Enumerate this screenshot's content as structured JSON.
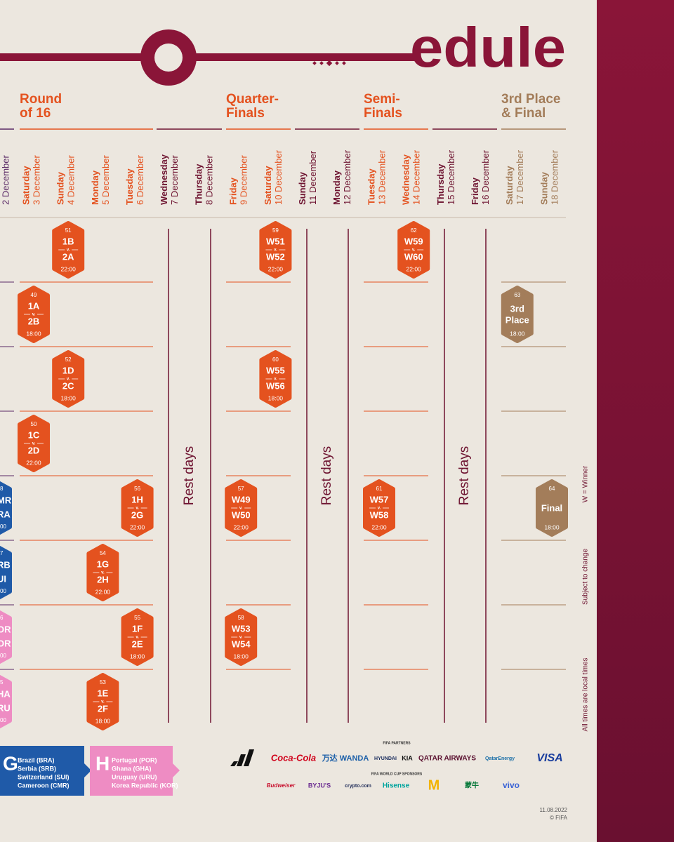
{
  "header": {
    "title": "edule"
  },
  "stages": [
    {
      "lines": [
        "Round",
        "of 16"
      ]
    },
    {
      "lines": [
        "Quarter-",
        "Finals"
      ]
    },
    {
      "lines": [
        "Semi-",
        "Finals"
      ]
    },
    {
      "lines": [
        "3rd Place",
        "& Final"
      ]
    }
  ],
  "days": [
    {
      "date": "2 December"
    },
    {
      "weekday": "Saturday",
      "date": "3 December"
    },
    {
      "weekday": "Sunday",
      "date": "4 December"
    },
    {
      "weekday": "Monday",
      "date": "5 December"
    },
    {
      "weekday": "Tuesday",
      "date": "6 December"
    },
    {
      "weekday": "Wednesday",
      "date": "7 December"
    },
    {
      "weekday": "Thursday",
      "date": "8 December"
    },
    {
      "weekday": "Friday",
      "date": "9 December"
    },
    {
      "weekday": "Saturday",
      "date": "10 December"
    },
    {
      "weekday": "Sunday",
      "date": "11 December"
    },
    {
      "weekday": "Monday",
      "date": "12 December"
    },
    {
      "weekday": "Tuesday",
      "date": "13 December"
    },
    {
      "weekday": "Wednesday",
      "date": "14 December"
    },
    {
      "weekday": "Thursday",
      "date": "15 December"
    },
    {
      "weekday": "Friday",
      "date": "16 December"
    },
    {
      "weekday": "Saturday",
      "date": "17 December"
    },
    {
      "weekday": "Sunday",
      "date": "18 December"
    }
  ],
  "matches": [
    {
      "number": 49,
      "home": "1A",
      "vs": "v.",
      "away": "2B",
      "time": "18:00"
    },
    {
      "number": 50,
      "home": "1C",
      "vs": "v.",
      "away": "2D",
      "time": "22:00"
    },
    {
      "number": 51,
      "home": "1B",
      "vs": "v.",
      "away": "2A",
      "time": "22:00"
    },
    {
      "number": 52,
      "home": "1D",
      "vs": "v.",
      "away": "2C",
      "time": "18:00"
    },
    {
      "number": 53,
      "home": "1E",
      "vs": "v.",
      "away": "2F",
      "time": "18:00"
    },
    {
      "number": 54,
      "home": "1G",
      "vs": "v.",
      "away": "2H",
      "time": "22:00"
    },
    {
      "number": 55,
      "home": "1F",
      "vs": "v.",
      "away": "2E",
      "time": "18:00"
    },
    {
      "number": 56,
      "home": "1H",
      "vs": "v.",
      "away": "2G",
      "time": "22:00"
    },
    {
      "number": 57,
      "home": "W49",
      "vs": "v.",
      "away": "W50",
      "time": "22:00"
    },
    {
      "number": 58,
      "home": "W53",
      "vs": "v.",
      "away": "W54",
      "time": "18:00"
    },
    {
      "number": 59,
      "home": "W51",
      "vs": "v.",
      "away": "W52",
      "time": "22:00"
    },
    {
      "number": 60,
      "home": "W55",
      "vs": "v.",
      "away": "W56",
      "time": "18:00"
    },
    {
      "number": 61,
      "home": "W57",
      "vs": "v.",
      "away": "W58",
      "time": "22:00"
    },
    {
      "number": 62,
      "home": "W59",
      "vs": "v.",
      "away": "W60",
      "time": "22:00"
    },
    {
      "number": 63,
      "home": "3rd",
      "away": "Place",
      "time": "18:00"
    },
    {
      "number": 64,
      "home": "Final",
      "time": "18:00"
    }
  ],
  "partial_matches": [
    {
      "fragments": [
        "8",
        "MR",
        "RA",
        "00"
      ]
    },
    {
      "fragments": [
        "7",
        "RB",
        "UI",
        "00"
      ]
    },
    {
      "fragments": [
        "6",
        "OR",
        "OR",
        "00"
      ]
    },
    {
      "fragments": [
        "5",
        "HA",
        "RU",
        "00"
      ]
    }
  ],
  "rest_days": [
    "Rest days",
    "Rest days",
    "Rest days"
  ],
  "groups": [
    {
      "letter": "G",
      "teams": [
        "Brazil (BRA)",
        "Serbia (SRB)",
        "Switzerland (SUI)",
        "Cameroon (CMR)"
      ]
    },
    {
      "letter": "H",
      "teams": [
        "Portugal (POR)",
        "Ghana (GHA)",
        "Uruguay (URU)",
        "Korea Republic (KOR)"
      ]
    }
  ],
  "sponsors": {
    "partners_label": "FIFA PARTNERS",
    "partners": [
      "Coca-Cola",
      "万达 WANDA",
      "HYUNDAI",
      "KIA",
      "QATAR AIRWAYS",
      "QatarEnergy",
      "VISA"
    ],
    "sponsors_label": "FIFA WORLD CUP SPONSORS",
    "sponsors": [
      "Budweiser",
      "BYJU'S",
      "crypto.com",
      "Hisense",
      "M",
      "蒙牛",
      "vivo"
    ]
  },
  "notes": [
    "W = Winner",
    "Subject to change",
    "All times are local times"
  ],
  "footer": {
    "date": "11.08.2022",
    "copyright": "© FIFA"
  }
}
